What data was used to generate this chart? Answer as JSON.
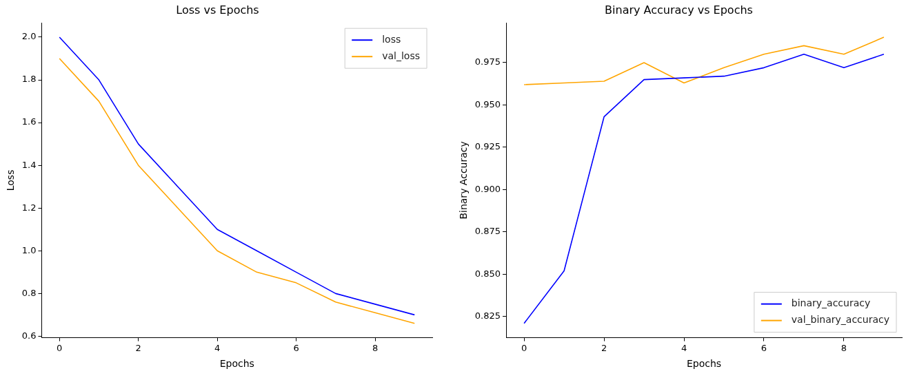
{
  "chart_data": [
    {
      "type": "line",
      "title": "Loss vs Epochs",
      "xlabel": "Epochs",
      "ylabel": "Loss",
      "x": [
        0,
        1,
        2,
        3,
        4,
        5,
        6,
        7,
        8,
        9
      ],
      "xlim": [
        -0.45,
        9.45
      ],
      "xticks": [
        0,
        2,
        4,
        6,
        8
      ],
      "ylim": [
        0.593,
        2.067
      ],
      "yticks": [
        0.6,
        0.8,
        {
          "value": 1,
          "label": "1.0"
        },
        1.2,
        1.4,
        1.6,
        1.8,
        {
          "value": 2,
          "label": "2.0"
        }
      ],
      "grid": false,
      "legend": "top right",
      "marker": "none",
      "line_style": "solid",
      "series": [
        {
          "name": "loss",
          "color": "#0000ff",
          "values": [
            2.0,
            1.8,
            1.5,
            1.3,
            1.1,
            1.0,
            0.9,
            0.8,
            0.75,
            0.7
          ]
        },
        {
          "name": "val_loss",
          "color": "#ffa500",
          "values": [
            1.9,
            1.7,
            1.4,
            1.2,
            1.0,
            0.9,
            0.85,
            0.76,
            0.71,
            0.66
          ]
        }
      ]
    },
    {
      "type": "line",
      "title": "Binary Accuracy vs Epochs",
      "xlabel": "Epochs",
      "ylabel": "Binary Accuracy",
      "x": [
        0,
        1,
        2,
        3,
        4,
        5,
        6,
        7,
        8,
        9
      ],
      "xlim": [
        -0.45,
        9.45
      ],
      "xticks": [
        0,
        2,
        4,
        6,
        8
      ],
      "ylim": [
        0.8125,
        0.9985
      ],
      "yticks": [
        0.825,
        {
          "value": 0.85,
          "label": "0.850"
        },
        0.875,
        {
          "value": 0.9,
          "label": "0.900"
        },
        0.925,
        {
          "value": 0.95,
          "label": "0.950"
        },
        0.975
      ],
      "grid": false,
      "legend": "bottom right",
      "marker": "none",
      "line_style": "solid",
      "series": [
        {
          "name": "binary_accuracy",
          "color": "#0000ff",
          "values": [
            0.821,
            0.852,
            0.943,
            0.965,
            0.966,
            0.967,
            0.972,
            0.98,
            0.972,
            0.98
          ]
        },
        {
          "name": "val_binary_accuracy",
          "color": "#ffa500",
          "values": [
            0.962,
            0.963,
            0.964,
            0.975,
            0.963,
            0.972,
            0.98,
            0.985,
            0.98,
            0.99
          ]
        }
      ]
    }
  ]
}
